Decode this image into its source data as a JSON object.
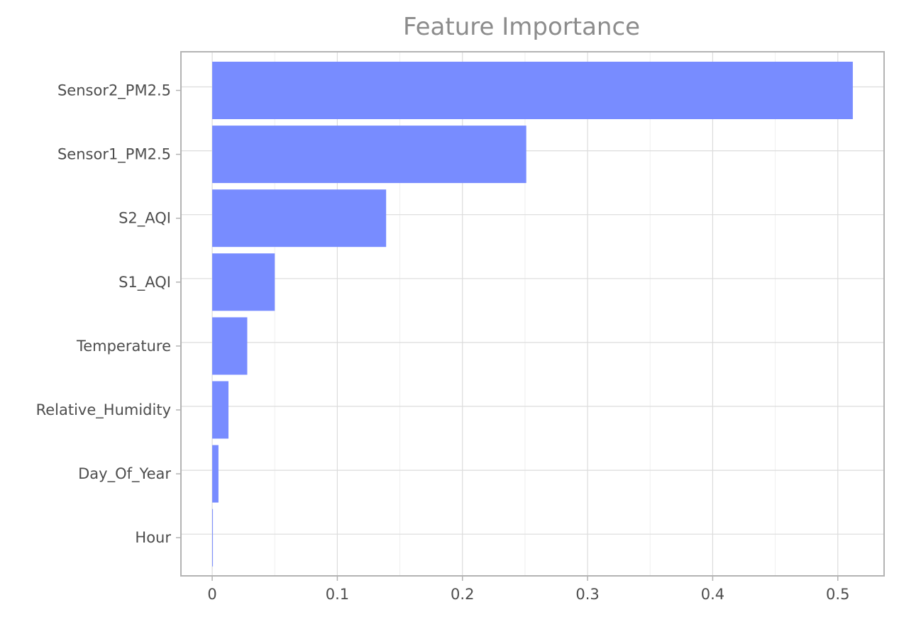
{
  "chart_data": {
    "type": "bar",
    "orientation": "horizontal",
    "title": "Feature Importance",
    "xlabel": "",
    "ylabel": "",
    "categories": [
      "Sensor2_PM2.5",
      "Sensor1_PM2.5",
      "S2_AQI",
      "S1_AQI",
      "Temperature",
      "Relative_Humidity",
      "Day_Of_Year",
      "Hour"
    ],
    "values": [
      0.512,
      0.251,
      0.139,
      0.05,
      0.028,
      0.013,
      0.005,
      0.0005
    ],
    "xlim": [
      -0.025,
      0.537
    ],
    "xticks": [
      0,
      0.1,
      0.2,
      0.3,
      0.4,
      0.5
    ],
    "xtick_labels": [
      "0",
      "0.1",
      "0.2",
      "0.3",
      "0.4",
      "0.5"
    ],
    "grid": true,
    "legend": "none",
    "colors": {
      "bar": "#788cff",
      "grid_major": "#dcdcdc",
      "grid_minor": "#efefef",
      "frame": "#b3b3b3",
      "title": "#8c8c8c",
      "tick_text": "#4d4d4d"
    }
  }
}
